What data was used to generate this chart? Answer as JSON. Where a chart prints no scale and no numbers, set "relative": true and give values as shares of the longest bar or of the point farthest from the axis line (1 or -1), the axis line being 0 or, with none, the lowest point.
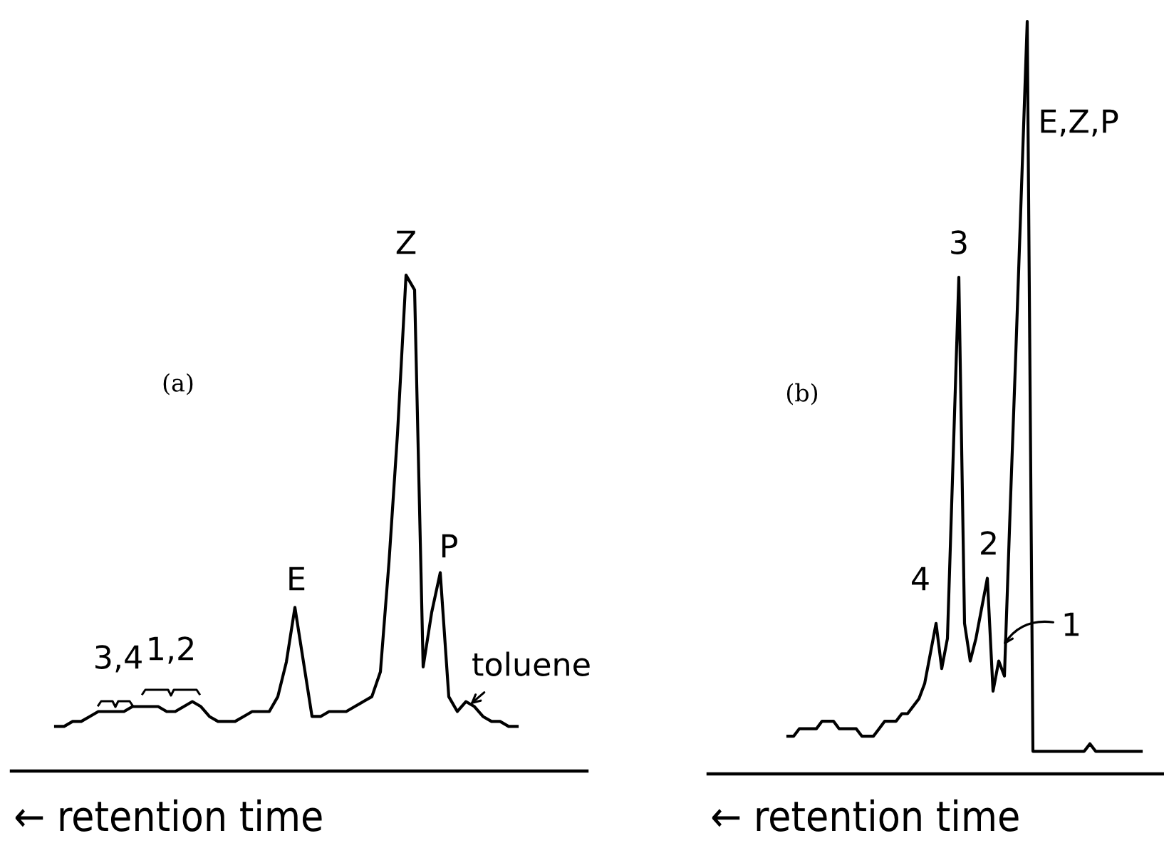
{
  "chart_data": [
    {
      "type": "line",
      "title": "(a)",
      "xlabel": "← retention time",
      "relative": true,
      "categories": [
        null,
        null,
        null,
        null,
        null,
        null,
        null,
        null,
        null,
        null,
        null,
        null,
        null,
        null,
        null,
        null,
        null,
        null,
        null,
        null,
        null,
        null,
        null,
        null,
        null,
        null,
        null,
        null,
        null,
        null,
        null,
        null,
        null,
        null,
        null,
        null,
        null,
        null,
        null,
        null,
        null,
        null,
        null,
        null,
        null,
        null,
        null,
        null,
        null,
        null,
        null,
        null,
        null,
        null,
        null
      ],
      "series": [
        {
          "color": "#000000",
          "values": [
            0.09,
            0.09,
            0.1,
            0.1,
            0.11,
            0.12,
            0.12,
            0.12,
            0.12,
            0.13,
            0.13,
            0.13,
            0.13,
            0.12,
            0.12,
            0.13,
            0.14,
            0.13,
            0.11,
            0.1,
            0.1,
            0.1,
            0.11,
            0.12,
            0.12,
            0.12,
            0.15,
            0.22,
            0.33,
            0.22,
            0.11,
            0.11,
            0.12,
            0.12,
            0.12,
            0.13,
            0.14,
            0.15,
            0.2,
            0.42,
            0.68,
            1,
            0.97,
            0.21,
            0.32,
            0.4,
            0.15,
            0.12,
            0.14,
            0.13,
            0.11,
            0.1,
            0.1,
            0.09,
            0.09
          ]
        }
      ],
      "annotations": [
        "3,4",
        "1,2",
        "E",
        "Z",
        "P",
        "toluene"
      ]
    },
    {
      "type": "line",
      "title": "(b)",
      "xlabel": "← retention time",
      "relative": true,
      "categories": [
        null,
        null,
        null,
        null,
        null,
        null,
        null,
        null,
        null,
        null,
        null,
        null,
        null,
        null,
        null,
        null,
        null,
        null,
        null,
        null,
        null,
        null,
        null,
        null,
        null,
        null,
        null,
        null,
        null,
        null,
        null,
        null,
        null,
        null,
        null,
        null,
        null,
        null,
        null,
        null,
        null,
        null,
        null,
        null,
        null,
        null,
        null,
        null,
        null,
        null,
        null,
        null,
        null,
        null,
        null,
        null,
        null,
        null,
        null,
        null,
        null,
        null,
        null
      ],
      "series": [
        {
          "color": "#000000",
          "values": [
            0.05,
            0.05,
            0.06,
            0.06,
            0.06,
            0.06,
            0.07,
            0.07,
            0.07,
            0.06,
            0.06,
            0.06,
            0.06,
            0.05,
            0.05,
            0.05,
            0.06,
            0.07,
            0.07,
            0.07,
            0.08,
            0.08,
            0.09,
            0.1,
            0.12,
            0.16,
            0.2,
            0.14,
            0.18,
            0.42,
            0.66,
            0.2,
            0.15,
            0.18,
            0.22,
            0.26,
            0.11,
            0.15,
            0.13,
            0.35,
            0.56,
            0.78,
            1,
            0.03,
            0.03,
            0.03,
            0.03,
            0.03,
            0.03,
            0.03,
            0.03,
            0.03,
            0.03,
            0.04,
            0.03,
            0.03,
            0.03,
            0.03,
            0.03,
            0.03,
            0.03,
            0.03,
            0.03
          ]
        }
      ],
      "annotations": [
        "4",
        "3",
        "2",
        "1",
        "E,Z,P"
      ]
    }
  ]
}
